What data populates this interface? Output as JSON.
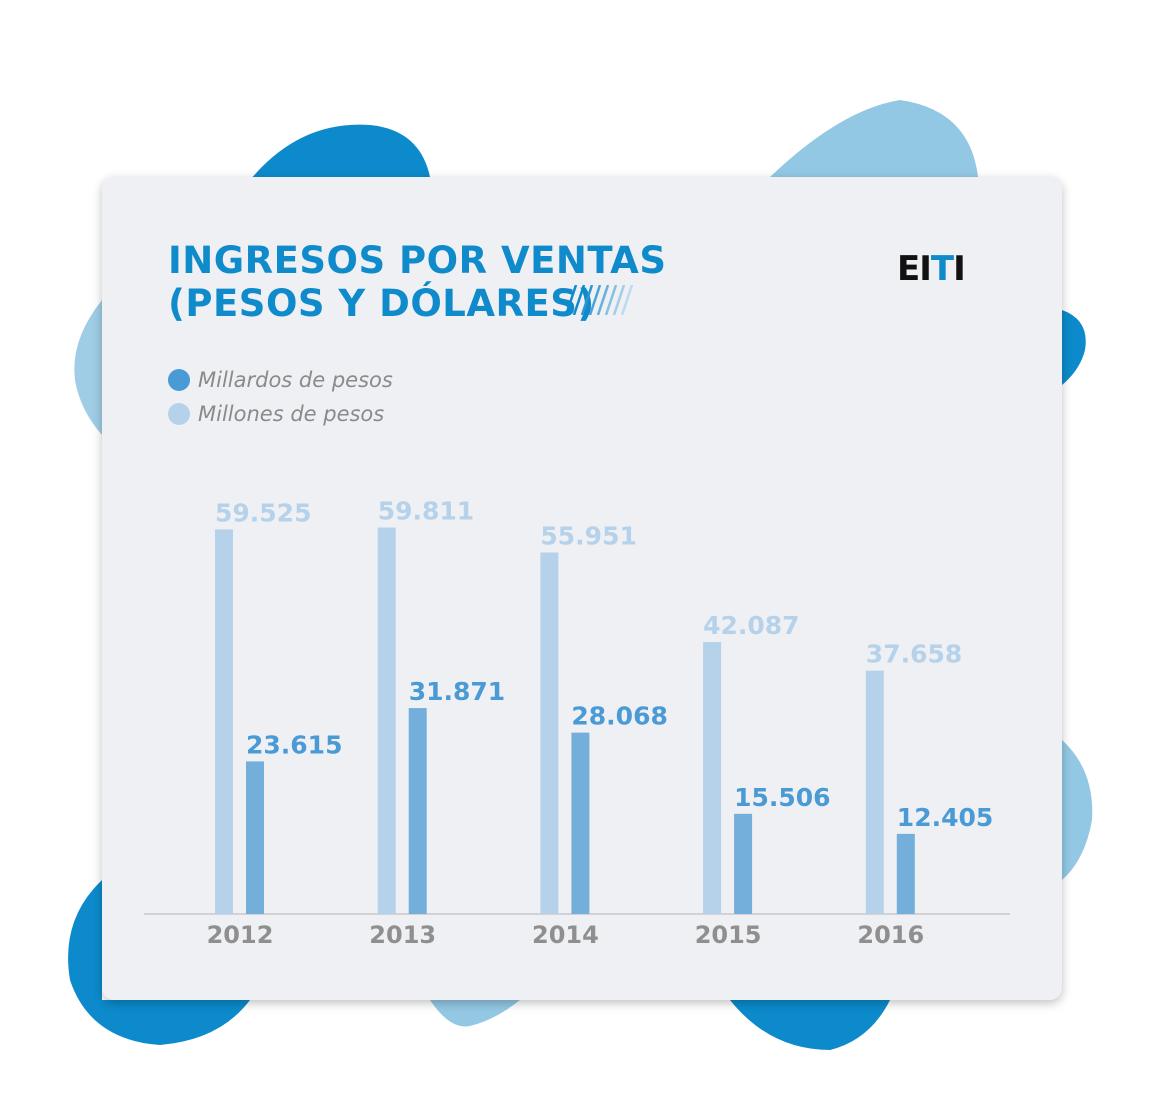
{
  "colors": {
    "title": "#0f8acb",
    "dark_series": "#74aedb",
    "light_series": "#b6d2ea",
    "dark_label": "#4a9ad6",
    "light_label": "#b6d2ea",
    "axis_label": "#8f8f8f",
    "blob_dark": "#0c8acb",
    "blob_light": "#93c8e4"
  },
  "logo": {
    "text": "EITI"
  },
  "chart_data": {
    "type": "bar",
    "title": "INGRESOS POR VENTAS (PESOS Y DÓLARES)",
    "title_lines": [
      "INGRESOS POR VENTAS",
      "(PESOS Y DÓLARES)"
    ],
    "categories": [
      "2012",
      "2013",
      "2014",
      "2015",
      "2016"
    ],
    "series": [
      {
        "name": "Millones de pesos",
        "values": [
          59.525,
          59.811,
          55.951,
          42.087,
          37.658
        ],
        "labels": [
          "59.525",
          "59.811",
          "55.951",
          "42.087",
          "37.658"
        ],
        "color": "#b6d2ea"
      },
      {
        "name": "Millardos de pesos",
        "values": [
          23.615,
          31.871,
          28.068,
          15.506,
          12.405
        ],
        "labels": [
          "23.615",
          "31.871",
          "28.068",
          "15.506",
          "12.405"
        ],
        "color": "#74aedb"
      }
    ],
    "legend": [
      "Millardos de pesos",
      "Millones de pesos"
    ],
    "legend_placement": "top-left",
    "ylim": [
      0,
      65
    ],
    "grid": false
  }
}
